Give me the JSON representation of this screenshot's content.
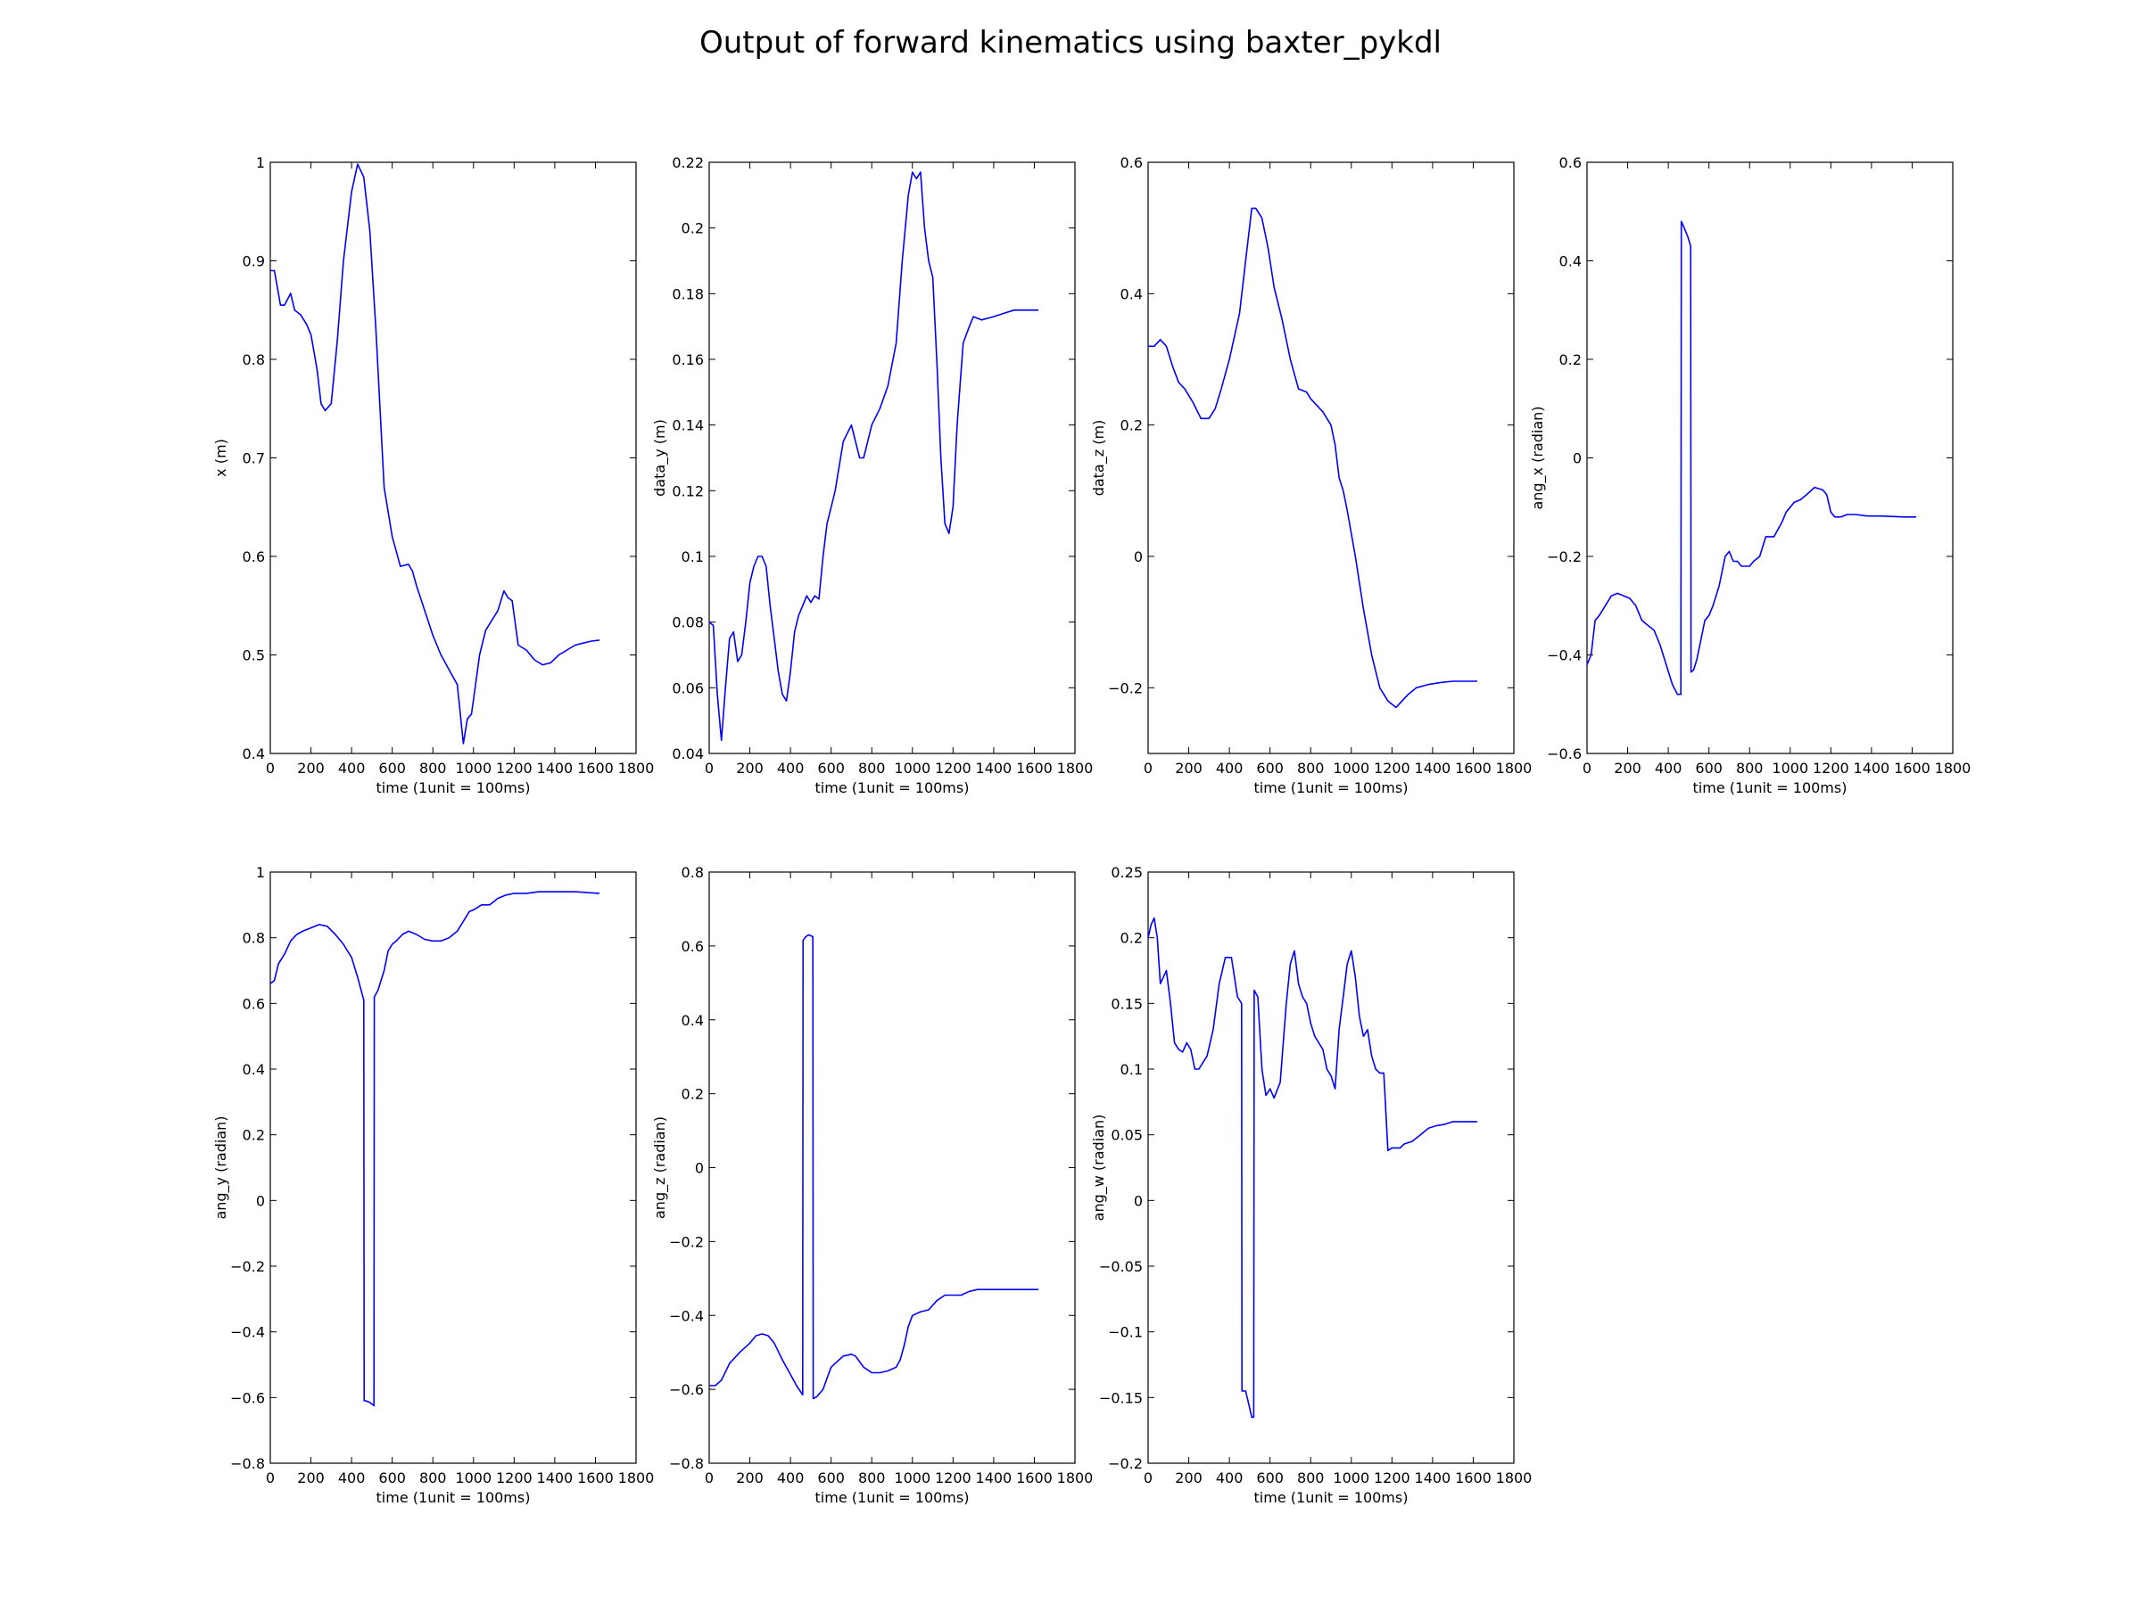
{
  "figure": {
    "title": "Output of forward kinematics using baxter_pykdl"
  },
  "colors": {
    "line": "#0000ff",
    "axes": "#000000",
    "background": "#ffffff"
  },
  "chart_data": [
    {
      "type": "line",
      "title": "",
      "xlabel": "time (1unit = 100ms)",
      "ylabel": "x (m)",
      "xlim": [
        0,
        1800
      ],
      "ylim": [
        0.4,
        1.0
      ],
      "xticks": [
        0,
        200,
        400,
        600,
        800,
        1000,
        1200,
        1400,
        1600,
        1800
      ],
      "yticks": [
        0.4,
        0.5,
        0.6,
        0.7,
        0.8,
        0.9,
        1.0
      ],
      "grid": false,
      "series": [
        {
          "x": [
            0,
            20,
            50,
            70,
            100,
            120,
            150,
            180,
            200,
            230,
            250,
            270,
            300,
            330,
            360,
            400,
            430,
            460,
            490,
            520,
            560,
            600,
            640,
            680,
            700,
            720,
            760,
            800,
            840,
            880,
            920,
            950,
            970,
            990,
            1010,
            1030,
            1060,
            1090,
            1120,
            1150,
            1170,
            1190,
            1220,
            1260,
            1300,
            1340,
            1380,
            1420,
            1460,
            1500,
            1540,
            1580,
            1620
          ],
          "y": [
            0.89,
            0.89,
            0.855,
            0.855,
            0.867,
            0.85,
            0.845,
            0.835,
            0.825,
            0.79,
            0.755,
            0.748,
            0.755,
            0.82,
            0.9,
            0.97,
            0.998,
            0.985,
            0.93,
            0.83,
            0.67,
            0.62,
            0.59,
            0.592,
            0.585,
            0.57,
            0.545,
            0.52,
            0.5,
            0.485,
            0.47,
            0.41,
            0.435,
            0.44,
            0.47,
            0.5,
            0.525,
            0.535,
            0.545,
            0.565,
            0.558,
            0.555,
            0.51,
            0.505,
            0.495,
            0.49,
            0.492,
            0.5,
            0.505,
            0.51,
            0.512,
            0.514,
            0.515
          ]
        }
      ]
    },
    {
      "type": "line",
      "title": "",
      "xlabel": "time (1unit = 100ms)",
      "ylabel": "data_y (m)",
      "xlim": [
        0,
        1800
      ],
      "ylim": [
        0.04,
        0.22
      ],
      "xticks": [
        0,
        200,
        400,
        600,
        800,
        1000,
        1200,
        1400,
        1600,
        1800
      ],
      "yticks": [
        0.04,
        0.06,
        0.08,
        0.1,
        0.12,
        0.14,
        0.16,
        0.18,
        0.2,
        0.22
      ],
      "grid": false,
      "series": [
        {
          "x": [
            0,
            20,
            40,
            60,
            80,
            100,
            120,
            140,
            160,
            180,
            200,
            220,
            240,
            260,
            280,
            300,
            320,
            340,
            360,
            380,
            400,
            420,
            440,
            460,
            480,
            500,
            520,
            540,
            560,
            580,
            600,
            620,
            660,
            700,
            720,
            740,
            760,
            780,
            800,
            840,
            880,
            920,
            950,
            980,
            1000,
            1020,
            1040,
            1060,
            1080,
            1100,
            1120,
            1140,
            1160,
            1180,
            1200,
            1220,
            1250,
            1280,
            1300,
            1340,
            1400,
            1450,
            1500,
            1550,
            1600,
            1620
          ],
          "y": [
            0.08,
            0.079,
            0.058,
            0.044,
            0.06,
            0.075,
            0.077,
            0.068,
            0.07,
            0.08,
            0.092,
            0.097,
            0.1,
            0.1,
            0.097,
            0.085,
            0.075,
            0.065,
            0.058,
            0.056,
            0.065,
            0.077,
            0.082,
            0.085,
            0.088,
            0.086,
            0.088,
            0.087,
            0.1,
            0.11,
            0.115,
            0.12,
            0.135,
            0.14,
            0.135,
            0.13,
            0.13,
            0.135,
            0.14,
            0.145,
            0.152,
            0.165,
            0.19,
            0.21,
            0.217,
            0.215,
            0.217,
            0.2,
            0.19,
            0.185,
            0.16,
            0.13,
            0.11,
            0.107,
            0.115,
            0.14,
            0.165,
            0.17,
            0.173,
            0.172,
            0.173,
            0.174,
            0.175,
            0.175,
            0.175,
            0.175
          ]
        }
      ]
    },
    {
      "type": "line",
      "title": "",
      "xlabel": "time (1unit = 100ms)",
      "ylabel": "data_z (m)",
      "xlim": [
        0,
        1800
      ],
      "ylim": [
        -0.3,
        0.6
      ],
      "xticks": [
        0,
        200,
        400,
        600,
        800,
        1000,
        1200,
        1400,
        1600,
        1800
      ],
      "yticks": [
        -0.2,
        0.0,
        0.2,
        0.4,
        0.6
      ],
      "grid": false,
      "series": [
        {
          "x": [
            0,
            30,
            60,
            90,
            120,
            150,
            180,
            220,
            260,
            300,
            330,
            360,
            400,
            450,
            480,
            510,
            530,
            560,
            590,
            620,
            660,
            700,
            740,
            780,
            800,
            830,
            860,
            900,
            920,
            940,
            960,
            980,
            1020,
            1060,
            1100,
            1140,
            1180,
            1220,
            1250,
            1280,
            1320,
            1380,
            1440,
            1500,
            1560,
            1620
          ],
          "y": [
            0.32,
            0.32,
            0.33,
            0.32,
            0.29,
            0.265,
            0.255,
            0.235,
            0.21,
            0.21,
            0.225,
            0.255,
            0.3,
            0.37,
            0.45,
            0.53,
            0.53,
            0.515,
            0.47,
            0.41,
            0.36,
            0.3,
            0.255,
            0.25,
            0.24,
            0.23,
            0.22,
            0.2,
            0.17,
            0.12,
            0.1,
            0.07,
            0.0,
            -0.08,
            -0.15,
            -0.2,
            -0.22,
            -0.23,
            -0.22,
            -0.21,
            -0.2,
            -0.195,
            -0.192,
            -0.19,
            -0.19,
            -0.19
          ]
        }
      ]
    },
    {
      "type": "line",
      "title": "",
      "xlabel": "time (1unit = 100ms)",
      "ylabel": "ang_x (radian)",
      "xlim": [
        0,
        1800
      ],
      "ylim": [
        -0.6,
        0.6
      ],
      "xticks": [
        0,
        200,
        400,
        600,
        800,
        1000,
        1200,
        1400,
        1600,
        1800
      ],
      "yticks": [
        -0.6,
        -0.4,
        -0.2,
        0.0,
        0.2,
        0.4,
        0.6
      ],
      "grid": false,
      "series": [
        {
          "x": [
            0,
            20,
            40,
            60,
            90,
            120,
            150,
            180,
            210,
            240,
            270,
            300,
            330,
            360,
            390,
            420,
            445,
            462,
            464,
            475,
            495,
            510,
            512,
            525,
            540,
            560,
            580,
            600,
            620,
            650,
            680,
            700,
            720,
            740,
            760,
            780,
            800,
            820,
            850,
            880,
            920,
            960,
            980,
            1000,
            1020,
            1050,
            1080,
            1120,
            1160,
            1180,
            1200,
            1220,
            1250,
            1280,
            1320,
            1380,
            1440,
            1500,
            1560,
            1620
          ],
          "y": [
            -0.42,
            -0.4,
            -0.33,
            -0.32,
            -0.3,
            -0.28,
            -0.275,
            -0.28,
            -0.285,
            -0.3,
            -0.33,
            -0.34,
            -0.35,
            -0.38,
            -0.42,
            -0.46,
            -0.48,
            -0.48,
            0.48,
            0.47,
            0.45,
            0.43,
            -0.435,
            -0.43,
            -0.41,
            -0.37,
            -0.33,
            -0.32,
            -0.3,
            -0.26,
            -0.2,
            -0.19,
            -0.21,
            -0.21,
            -0.22,
            -0.22,
            -0.22,
            -0.21,
            -0.2,
            -0.16,
            -0.16,
            -0.13,
            -0.11,
            -0.1,
            -0.09,
            -0.085,
            -0.075,
            -0.06,
            -0.065,
            -0.075,
            -0.11,
            -0.12,
            -0.12,
            -0.115,
            -0.115,
            -0.118,
            -0.118,
            -0.119,
            -0.12,
            -0.12
          ]
        }
      ]
    },
    {
      "type": "line",
      "title": "",
      "xlabel": "time (1unit = 100ms)",
      "ylabel": "ang_y (radian)",
      "xlim": [
        0,
        1800
      ],
      "ylim": [
        -0.8,
        1.0
      ],
      "xticks": [
        0,
        200,
        400,
        600,
        800,
        1000,
        1200,
        1400,
        1600,
        1800
      ],
      "yticks": [
        -0.8,
        -0.6,
        -0.4,
        -0.2,
        0.0,
        0.2,
        0.4,
        0.6,
        0.8,
        1.0
      ],
      "grid": false,
      "series": [
        {
          "x": [
            0,
            20,
            40,
            70,
            100,
            130,
            160,
            200,
            240,
            280,
            320,
            360,
            400,
            430,
            460,
            462,
            470,
            490,
            510,
            512,
            530,
            560,
            580,
            600,
            620,
            650,
            680,
            700,
            720,
            760,
            800,
            840,
            880,
            920,
            950,
            980,
            1000,
            1040,
            1080,
            1120,
            1160,
            1200,
            1260,
            1320,
            1400,
            1500,
            1620
          ],
          "y": [
            0.66,
            0.67,
            0.72,
            0.75,
            0.79,
            0.81,
            0.82,
            0.83,
            0.84,
            0.835,
            0.81,
            0.78,
            0.74,
            0.68,
            0.61,
            -0.61,
            -0.61,
            -0.615,
            -0.625,
            0.62,
            0.64,
            0.7,
            0.76,
            0.78,
            0.79,
            0.81,
            0.82,
            0.815,
            0.81,
            0.795,
            0.79,
            0.79,
            0.8,
            0.82,
            0.85,
            0.88,
            0.885,
            0.9,
            0.9,
            0.92,
            0.93,
            0.935,
            0.935,
            0.94,
            0.94,
            0.94,
            0.935
          ]
        }
      ]
    },
    {
      "type": "line",
      "title": "",
      "xlabel": "time (1unit = 100ms)",
      "ylabel": "ang_z (radian)",
      "xlim": [
        0,
        1800
      ],
      "ylim": [
        -0.8,
        0.8
      ],
      "xticks": [
        0,
        200,
        400,
        600,
        800,
        1000,
        1200,
        1400,
        1600,
        1800
      ],
      "yticks": [
        -0.8,
        -0.6,
        -0.4,
        -0.2,
        0.0,
        0.2,
        0.4,
        0.6,
        0.8
      ],
      "grid": false,
      "series": [
        {
          "x": [
            0,
            30,
            60,
            100,
            150,
            200,
            230,
            260,
            290,
            320,
            360,
            400,
            430,
            460,
            462,
            475,
            490,
            510,
            512,
            530,
            560,
            580,
            600,
            620,
            660,
            700,
            720,
            760,
            800,
            840,
            880,
            920,
            940,
            960,
            980,
            1000,
            1040,
            1080,
            1120,
            1160,
            1200,
            1240,
            1280,
            1320,
            1400,
            1500,
            1620
          ],
          "y": [
            -0.59,
            -0.59,
            -0.575,
            -0.53,
            -0.5,
            -0.475,
            -0.455,
            -0.45,
            -0.455,
            -0.475,
            -0.52,
            -0.56,
            -0.59,
            -0.615,
            0.615,
            0.625,
            0.63,
            0.625,
            -0.625,
            -0.62,
            -0.6,
            -0.57,
            -0.54,
            -0.53,
            -0.51,
            -0.505,
            -0.51,
            -0.54,
            -0.555,
            -0.555,
            -0.55,
            -0.54,
            -0.52,
            -0.48,
            -0.43,
            -0.4,
            -0.39,
            -0.385,
            -0.36,
            -0.345,
            -0.345,
            -0.345,
            -0.335,
            -0.33,
            -0.33,
            -0.33,
            -0.33
          ]
        }
      ]
    },
    {
      "type": "line",
      "title": "",
      "xlabel": "time (1unit = 100ms)",
      "ylabel": "ang_w (radian)",
      "xlim": [
        0,
        1800
      ],
      "ylim": [
        -0.2,
        0.25
      ],
      "xticks": [
        0,
        200,
        400,
        600,
        800,
        1000,
        1200,
        1400,
        1600,
        1800
      ],
      "yticks": [
        -0.2,
        -0.15,
        -0.1,
        -0.05,
        0.0,
        0.05,
        0.1,
        0.15,
        0.2,
        0.25
      ],
      "grid": false,
      "series": [
        {
          "x": [
            0,
            15,
            30,
            45,
            60,
            75,
            90,
            110,
            130,
            150,
            170,
            190,
            210,
            230,
            250,
            270,
            290,
            320,
            350,
            380,
            410,
            440,
            460,
            462,
            480,
            495,
            510,
            520,
            522,
            540,
            560,
            580,
            600,
            620,
            650,
            680,
            700,
            720,
            740,
            760,
            780,
            800,
            820,
            840,
            860,
            880,
            900,
            920,
            940,
            960,
            980,
            1000,
            1020,
            1040,
            1060,
            1080,
            1100,
            1120,
            1140,
            1160,
            1180,
            1200,
            1220,
            1240,
            1260,
            1300,
            1340,
            1380,
            1420,
            1460,
            1500,
            1540,
            1580,
            1620
          ],
          "y": [
            0.2,
            0.21,
            0.215,
            0.2,
            0.165,
            0.17,
            0.175,
            0.15,
            0.12,
            0.115,
            0.113,
            0.12,
            0.115,
            0.1,
            0.1,
            0.105,
            0.11,
            0.13,
            0.165,
            0.185,
            0.185,
            0.155,
            0.15,
            -0.145,
            -0.145,
            -0.155,
            -0.165,
            -0.165,
            0.16,
            0.155,
            0.1,
            0.08,
            0.085,
            0.078,
            0.09,
            0.15,
            0.18,
            0.19,
            0.165,
            0.155,
            0.15,
            0.135,
            0.125,
            0.12,
            0.115,
            0.1,
            0.095,
            0.085,
            0.13,
            0.155,
            0.18,
            0.19,
            0.17,
            0.14,
            0.125,
            0.13,
            0.11,
            0.1,
            0.097,
            0.097,
            0.038,
            0.04,
            0.04,
            0.04,
            0.043,
            0.045,
            0.05,
            0.055,
            0.057,
            0.058,
            0.06,
            0.06,
            0.06,
            0.06
          ]
        }
      ]
    }
  ]
}
